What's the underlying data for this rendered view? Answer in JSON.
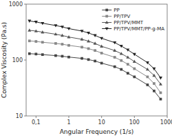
{
  "chart_data": {
    "type": "line",
    "xlabel": "Angular Frequency (1/s)",
    "ylabel": "Complex Viscosity (Pa.s)",
    "x": [
      0.063,
      0.1,
      0.158,
      0.398,
      0.631,
      1.0,
      2.51,
      3.98,
      6.31,
      10,
      25.1,
      39.8,
      63.1,
      100,
      251,
      398,
      631
    ],
    "series": [
      {
        "name": "PP",
        "color": "#444444",
        "marker": "square",
        "values": [
          130,
          128,
          125,
          120,
          117,
          113,
          107,
          102,
          96,
          88,
          76,
          68,
          58,
          50,
          36,
          28,
          20
        ]
      },
      {
        "name": "PP/TPV",
        "color": "#888888",
        "marker": "square",
        "values": [
          220,
          215,
          208,
          198,
          192,
          183,
          170,
          160,
          148,
          133,
          112,
          98,
          84,
          70,
          50,
          38,
          26
        ]
      },
      {
        "name": "PP/TPV/MMT",
        "color": "#555555",
        "marker": "triangle-up",
        "values": [
          340,
          330,
          315,
          290,
          275,
          258,
          235,
          218,
          198,
          176,
          148,
          130,
          112,
          94,
          68,
          53,
          37
        ]
      },
      {
        "name": "PP/TPV/MMT/PP-g-MA",
        "color": "#222222",
        "marker": "triangle-down",
        "values": [
          500,
          480,
          455,
          415,
          392,
          365,
          330,
          305,
          276,
          245,
          205,
          178,
          152,
          127,
          90,
          70,
          48
        ]
      }
    ],
    "xlim": [
      0.05,
      1000
    ],
    "ylim": [
      10,
      1000
    ],
    "xticks": [
      {
        "value": 0.1,
        "label": "0,1"
      },
      1,
      10,
      100,
      1000
    ],
    "yticks": [
      10,
      100,
      1000
    ],
    "log": true,
    "grid": false,
    "legend": "upper-right"
  }
}
